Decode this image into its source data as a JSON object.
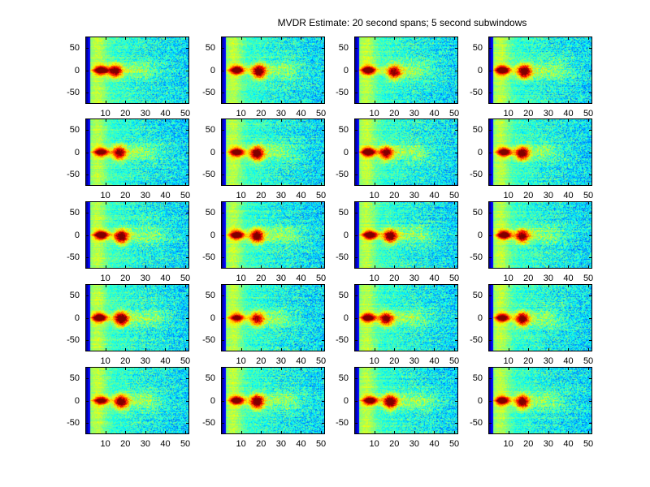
{
  "figure": {
    "title": "MVDR Estimate: 20 second spans; 5 second subwindows"
  },
  "chart_data": {
    "type": "heatmap",
    "title": "MVDR Estimate: 20 second spans; 5 second subwindows",
    "layout": {
      "rows": 5,
      "cols": 4
    },
    "xlim": [
      0,
      52
    ],
    "ylim": [
      75,
      -75
    ],
    "xticks": [
      10,
      20,
      30,
      40,
      50
    ],
    "yticks": [
      -50,
      0,
      50
    ],
    "xtick_labels": [
      "10",
      "20",
      "30",
      "40",
      "50"
    ],
    "ytick_labels": [
      "-50",
      "0",
      "50"
    ],
    "colormap": "jet",
    "xlabel": "",
    "ylabel": "",
    "grid": false,
    "panels": [
      {
        "row": 1,
        "col": 1,
        "peaks": [
          {
            "x": 8,
            "y": 0,
            "value": 0.95
          },
          {
            "x": 15,
            "y": -2,
            "value": 0.85
          }
        ],
        "spread_end": 30
      },
      {
        "row": 1,
        "col": 2,
        "peaks": [
          {
            "x": 8,
            "y": 0,
            "value": 0.9
          },
          {
            "x": 19,
            "y": -3,
            "value": 0.9
          }
        ],
        "spread_end": 35
      },
      {
        "row": 1,
        "col": 3,
        "peaks": [
          {
            "x": 7,
            "y": 0,
            "value": 0.92
          },
          {
            "x": 20,
            "y": -5,
            "value": 0.82
          }
        ],
        "spread_end": 33
      },
      {
        "row": 1,
        "col": 4,
        "peaks": [
          {
            "x": 7,
            "y": 0,
            "value": 0.95
          },
          {
            "x": 18,
            "y": -3,
            "value": 0.9
          }
        ],
        "spread_end": 36
      },
      {
        "row": 2,
        "col": 1,
        "peaks": [
          {
            "x": 8,
            "y": 0,
            "value": 0.85
          },
          {
            "x": 17,
            "y": -2,
            "value": 0.85
          }
        ],
        "spread_end": 32
      },
      {
        "row": 2,
        "col": 2,
        "peaks": [
          {
            "x": 8,
            "y": 0,
            "value": 0.9
          },
          {
            "x": 18,
            "y": -3,
            "value": 0.92
          }
        ],
        "spread_end": 32
      },
      {
        "row": 2,
        "col": 3,
        "peaks": [
          {
            "x": 7,
            "y": 0,
            "value": 0.95
          },
          {
            "x": 16,
            "y": -2,
            "value": 0.85
          }
        ],
        "spread_end": 32
      },
      {
        "row": 2,
        "col": 4,
        "peaks": [
          {
            "x": 8,
            "y": 0,
            "value": 0.9
          },
          {
            "x": 17,
            "y": -3,
            "value": 0.9
          }
        ],
        "spread_end": 30
      },
      {
        "row": 3,
        "col": 1,
        "peaks": [
          {
            "x": 8,
            "y": 0,
            "value": 0.95
          },
          {
            "x": 18,
            "y": -4,
            "value": 0.9
          }
        ],
        "spread_end": 36
      },
      {
        "row": 3,
        "col": 2,
        "peaks": [
          {
            "x": 8,
            "y": 0,
            "value": 0.92
          },
          {
            "x": 18,
            "y": -3,
            "value": 0.88
          }
        ],
        "spread_end": 35
      },
      {
        "row": 3,
        "col": 3,
        "peaks": [
          {
            "x": 8,
            "y": 0,
            "value": 0.92
          },
          {
            "x": 18,
            "y": -3,
            "value": 0.88
          }
        ],
        "spread_end": 34
      },
      {
        "row": 3,
        "col": 4,
        "peaks": [
          {
            "x": 8,
            "y": 0,
            "value": 0.9
          },
          {
            "x": 17,
            "y": -3,
            "value": 0.85
          }
        ],
        "spread_end": 32
      },
      {
        "row": 4,
        "col": 1,
        "peaks": [
          {
            "x": 7,
            "y": 0,
            "value": 0.95
          },
          {
            "x": 18,
            "y": -3,
            "value": 0.95
          }
        ],
        "spread_end": 36
      },
      {
        "row": 4,
        "col": 2,
        "peaks": [
          {
            "x": 8,
            "y": 0,
            "value": 0.8
          },
          {
            "x": 18,
            "y": -3,
            "value": 0.78
          }
        ],
        "spread_end": 30
      },
      {
        "row": 4,
        "col": 3,
        "peaks": [
          {
            "x": 7,
            "y": 0,
            "value": 0.9
          },
          {
            "x": 16,
            "y": -3,
            "value": 0.85
          }
        ],
        "spread_end": 32
      },
      {
        "row": 4,
        "col": 4,
        "peaks": [
          {
            "x": 7,
            "y": 0,
            "value": 0.9
          },
          {
            "x": 17,
            "y": -3,
            "value": 0.88
          }
        ],
        "spread_end": 32
      },
      {
        "row": 5,
        "col": 1,
        "peaks": [
          {
            "x": 8,
            "y": 0,
            "value": 0.82
          },
          {
            "x": 18,
            "y": -3,
            "value": 0.88
          }
        ],
        "spread_end": 32
      },
      {
        "row": 5,
        "col": 2,
        "peaks": [
          {
            "x": 8,
            "y": 0,
            "value": 0.9
          },
          {
            "x": 18,
            "y": -3,
            "value": 0.92
          }
        ],
        "spread_end": 36
      },
      {
        "row": 5,
        "col": 3,
        "peaks": [
          {
            "x": 8,
            "y": 0,
            "value": 0.9
          },
          {
            "x": 18,
            "y": -3,
            "value": 0.92
          }
        ],
        "spread_end": 36
      },
      {
        "row": 5,
        "col": 4,
        "peaks": [
          {
            "x": 7,
            "y": 0,
            "value": 0.92
          },
          {
            "x": 17,
            "y": -3,
            "value": 0.88
          }
        ],
        "spread_end": 33
      }
    ]
  }
}
